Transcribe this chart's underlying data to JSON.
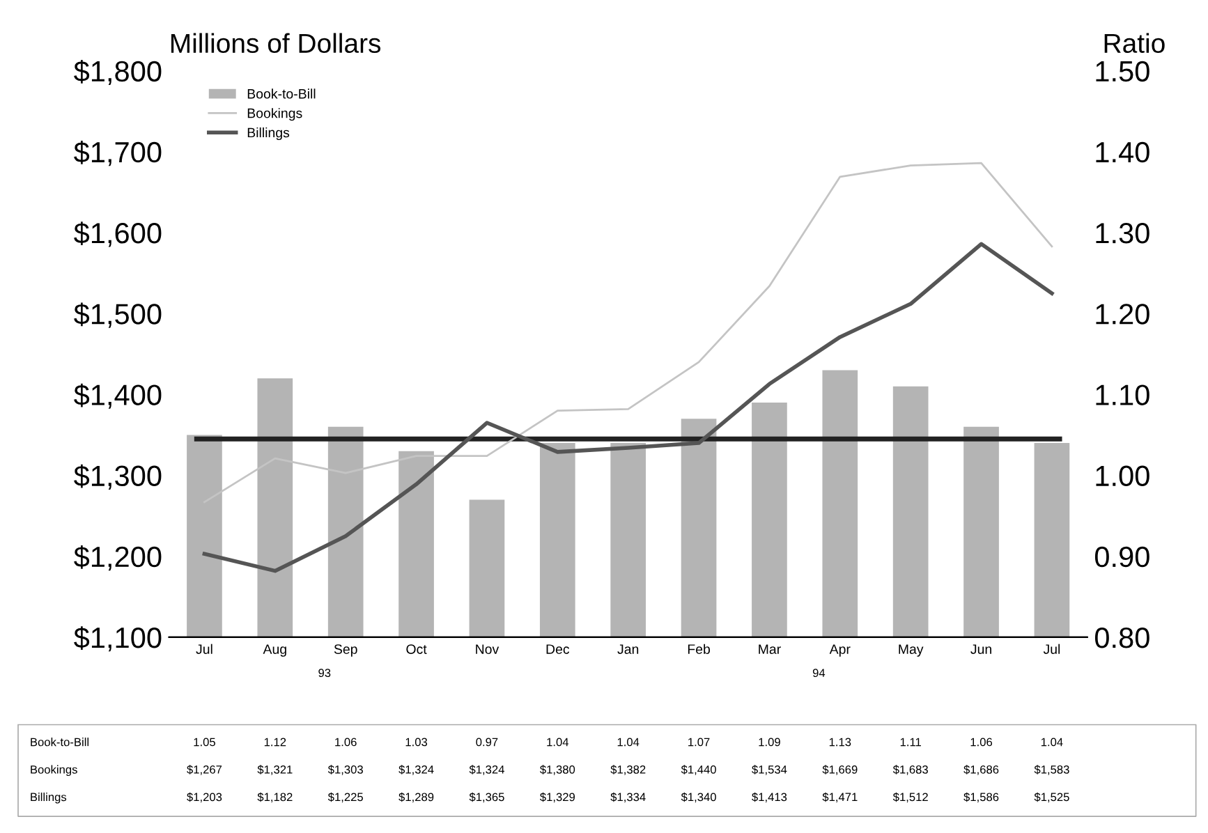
{
  "chart_data": {
    "type": "line",
    "ylabel": "Millions of Dollars",
    "y2label": "Ratio",
    "categories": [
      "Jul",
      "Aug",
      "Sep",
      "Oct",
      "Nov",
      "Dec",
      "Jan",
      "Feb",
      "Mar",
      "Apr",
      "May",
      "Jun",
      "Jul"
    ],
    "series": [
      {
        "name": "Book-to-Bill",
        "type": "bar",
        "axis": "y2",
        "color": "#b4b4b4",
        "values": [
          1.05,
          1.12,
          1.06,
          1.03,
          0.97,
          1.04,
          1.04,
          1.07,
          1.09,
          1.13,
          1.11,
          1.06,
          1.04
        ],
        "value_labels": [
          "1.05",
          "1.12",
          "1.06",
          "1.03",
          "0.97",
          "1.04",
          "1.04",
          "1.07",
          "1.09",
          "1.13",
          "1.11",
          "1.06",
          "1.04"
        ]
      },
      {
        "name": "Bookings",
        "color": "#c4c4c4",
        "values": [
          1267,
          1321,
          1303,
          1324,
          1324,
          1380,
          1382,
          1440,
          1534,
          1669,
          1683,
          1686,
          1583
        ],
        "value_labels": [
          "$1,267",
          "$1,321",
          "$1,303",
          "$1,324",
          "$1,324",
          "$1,380",
          "$1,382",
          "$1,440",
          "$1,534",
          "$1,669",
          "$1,683",
          "$1,686",
          "$1,583"
        ]
      },
      {
        "name": "Billings",
        "color": "#555555",
        "values": [
          1203,
          1182,
          1225,
          1289,
          1365,
          1329,
          1334,
          1340,
          1413,
          1471,
          1512,
          1586,
          1525
        ],
        "value_labels": [
          "$1,203",
          "$1,182",
          "$1,225",
          "$1,289",
          "$1,365",
          "$1,329",
          "$1,334",
          "$1,340",
          "$1,413",
          "$1,471",
          "$1,512",
          "$1,586",
          "$1,525"
        ]
      }
    ],
    "ylim": [
      1100,
      1800
    ],
    "yticks": [
      {
        "value": 1100,
        "label": "$1,100"
      },
      {
        "value": 1200,
        "label": "$1,200"
      },
      {
        "value": 1300,
        "label": "$1,300"
      },
      {
        "value": 1400,
        "label": "$1,400"
      },
      {
        "value": 1500,
        "label": "$1,500"
      },
      {
        "value": 1600,
        "label": "$1,600"
      },
      {
        "value": 1700,
        "label": "$1,700"
      },
      {
        "value": 1800,
        "label": "$1,800"
      }
    ],
    "y2lim": [
      0.8,
      1.5
    ],
    "y2ticks": [
      {
        "value": 0.8,
        "label": "0.80"
      },
      {
        "value": 0.9,
        "label": "0.90"
      },
      {
        "value": 1.0,
        "label": "1.00"
      },
      {
        "value": 1.1,
        "label": "1.10"
      },
      {
        "value": 1.2,
        "label": "1.20"
      },
      {
        "value": 1.3,
        "label": "1.30"
      },
      {
        "value": 1.4,
        "label": "1.40"
      },
      {
        "value": 1.5,
        "label": "1.50"
      }
    ],
    "ref_lines": [
      {
        "axis": "y2",
        "value": 1.045,
        "color": "#222222"
      }
    ],
    "annotations": [
      "93",
      "94"
    ],
    "legend": "top left",
    "grid": false
  }
}
